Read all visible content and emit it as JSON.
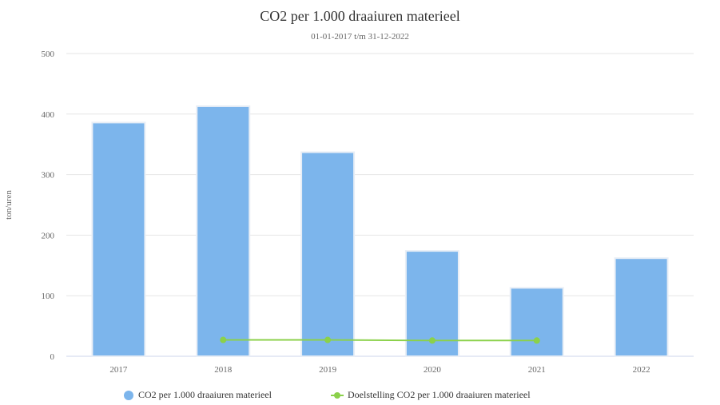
{
  "chart_data": {
    "type": "bar",
    "title": "CO2 per 1.000 draaiuren materieel",
    "subtitle": "01-01-2017 t/m 31-12-2022",
    "ylabel": "ton/uren",
    "xlabel": "",
    "categories": [
      "2017",
      "2018",
      "2019",
      "2020",
      "2021",
      "2022"
    ],
    "ylim": [
      0,
      500
    ],
    "yticks": [
      0,
      100,
      200,
      300,
      400,
      500
    ],
    "grid": true,
    "legend_position": "bottom-center",
    "series": [
      {
        "name": "CO2 per 1.000 draaiuren materieel",
        "type": "bar",
        "color": "#7cb5ec",
        "values": [
          386,
          413,
          337,
          174,
          113,
          162
        ]
      },
      {
        "name": "Doelstelling CO2 per 1.000 draaiuren materieel",
        "type": "line",
        "color": "#8bd14a",
        "values": [
          null,
          27,
          27,
          26,
          26,
          null
        ]
      }
    ]
  }
}
